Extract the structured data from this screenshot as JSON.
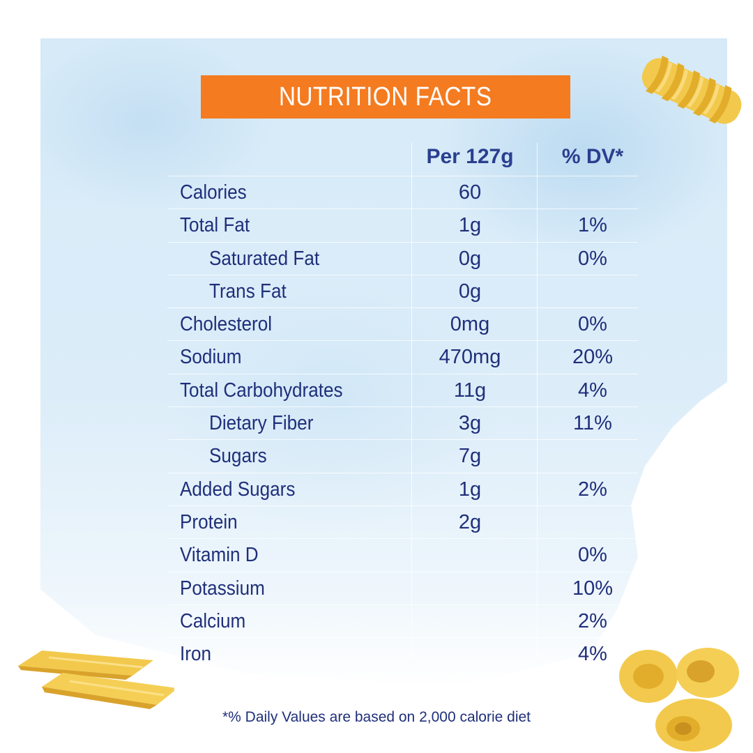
{
  "title": "NUTRITION FACTS",
  "columns": {
    "per": "Per 127g",
    "dv": "% DV*"
  },
  "rows": [
    {
      "name": "Calories",
      "per": "60",
      "dv": "",
      "indent": false
    },
    {
      "name": "Total Fat",
      "per": "1g",
      "dv": "1%",
      "indent": false
    },
    {
      "name": "Saturated Fat",
      "per": "0g",
      "dv": "0%",
      "indent": true
    },
    {
      "name": "Trans Fat",
      "per": "0g",
      "dv": "",
      "indent": true
    },
    {
      "name": "Cholesterol",
      "per": "0mg",
      "dv": "0%",
      "indent": false
    },
    {
      "name": "Sodium",
      "per": "470mg",
      "dv": "20%",
      "indent": false
    },
    {
      "name": "Total Carbohydrates",
      "per": "11g",
      "dv": "4%",
      "indent": false
    },
    {
      "name": "Dietary Fiber",
      "per": "3g",
      "dv": "11%",
      "indent": true
    },
    {
      "name": "Sugars",
      "per": "7g",
      "dv": "",
      "indent": true
    },
    {
      "name": "Added Sugars",
      "per": "1g",
      "dv": "2%",
      "indent": false
    },
    {
      "name": "Protein",
      "per": "2g",
      "dv": "",
      "indent": false
    },
    {
      "name": "Vitamin D",
      "per": "",
      "dv": "0%",
      "indent": false
    },
    {
      "name": "Potassium",
      "per": "",
      "dv": "10%",
      "indent": false
    },
    {
      "name": "Calcium",
      "per": "",
      "dv": "2%",
      "indent": false
    },
    {
      "name": "Iron",
      "per": "",
      "dv": "4%",
      "indent": false
    }
  ],
  "footnote": "*% Daily Values are based on 2,000 calorie diet",
  "colors": {
    "banner": "#f47b20",
    "text": "#1f2f7a",
    "header_text": "#2a3f8f",
    "background": "#d6eaf8"
  },
  "decorations": [
    "fusilli-pasta",
    "penne-pasta",
    "elbow-pasta"
  ]
}
